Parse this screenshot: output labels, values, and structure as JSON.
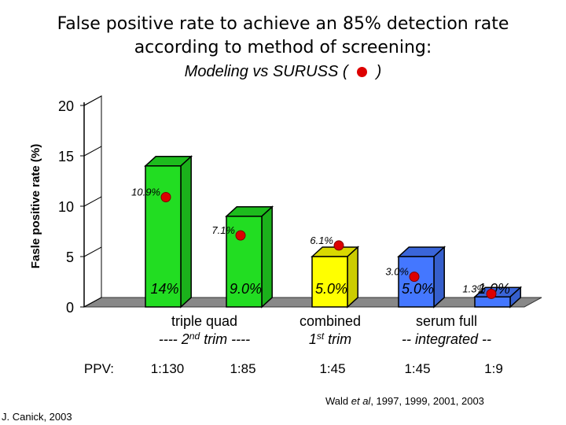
{
  "title_line1": "False positive rate to achieve an 85% detection rate",
  "title_line2": "according to method of screening:",
  "subtitle_text": "Modeling vs SURUSS (",
  "subtitle_close": ")",
  "attribution_left": "J. Canick, 2003",
  "attribution_right_prefix": "Wald ",
  "attribution_right_etal": "et al",
  "attribution_right_suffix": ", 1997, 1999, 2001, 2003",
  "ppv_label": "PPV:",
  "colors": {
    "green": "#22dd22",
    "yellow": "#ffff00",
    "blue": "#4477ff",
    "dot": "#dd0000",
    "floor": "#888888"
  },
  "chart_data": {
    "type": "bar",
    "ylabel": "Fasle positive rate (%)",
    "ylim": [
      0,
      20
    ],
    "yticks": [
      "0",
      "5",
      "10",
      "15",
      "20"
    ],
    "groups": [
      {
        "line1": "triple              quad",
        "line2a": "---- 2",
        "line2sup": "nd",
        "line2b": " trim ----"
      },
      {
        "line1": "combined",
        "line2a": "1",
        "line2sup": "st",
        "line2b": " trim"
      },
      {
        "line1": "serum          full",
        "line2a": "-- integrated --",
        "line2sup": "",
        "line2b": ""
      }
    ],
    "categories": [
      "triple",
      "quad",
      "combined",
      "serum",
      "full"
    ],
    "series": [
      {
        "name": "Modeling",
        "values": [
          14.0,
          9.0,
          5.0,
          5.0,
          1.0
        ],
        "labels": [
          "14%",
          "9.0%",
          "5.0%",
          "5.0%",
          "1.0%"
        ],
        "colors": [
          "green",
          "green",
          "yellow",
          "blue",
          "blue"
        ]
      },
      {
        "name": "SURUSS",
        "values": [
          10.9,
          7.1,
          6.1,
          3.0,
          1.3
        ],
        "labels": [
          "10.9%",
          "7.1%",
          "6.1%",
          "3.0%",
          "1.3%"
        ]
      }
    ],
    "ppv": [
      "1:130",
      "1:85",
      "1:45",
      "1:45",
      "1:9"
    ]
  }
}
